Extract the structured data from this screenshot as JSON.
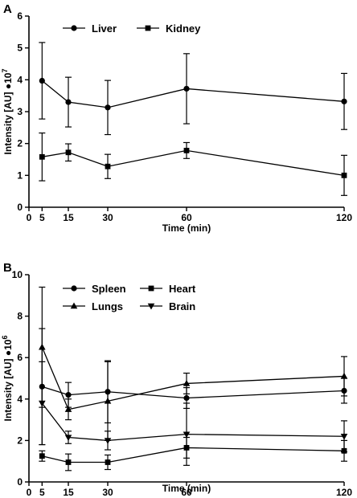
{
  "chart_data": [
    {
      "panel_label": "A",
      "type": "line",
      "x": [
        5,
        15,
        30,
        60,
        120
      ],
      "xticks": [
        0,
        5,
        15,
        30,
        60,
        120
      ],
      "xlabel": "Time (min)",
      "ylabel": "Intensity [AU] ●10",
      "ylabel_exp": "7",
      "ylim": [
        0,
        6
      ],
      "yticks": [
        0,
        1,
        2,
        3,
        4,
        5,
        6
      ],
      "legend_placement": "top-left",
      "series": [
        {
          "name": "Liver",
          "marker": "circle",
          "values": [
            3.97,
            3.3,
            3.13,
            3.72,
            3.32
          ],
          "errors": [
            1.2,
            0.78,
            0.85,
            1.1,
            0.88
          ]
        },
        {
          "name": "Kidney",
          "marker": "square",
          "values": [
            1.58,
            1.72,
            1.28,
            1.78,
            1.0
          ],
          "errors": [
            0.75,
            0.27,
            0.38,
            0.25,
            0.63
          ]
        }
      ]
    },
    {
      "panel_label": "B",
      "type": "line",
      "x": [
        5,
        15,
        30,
        60,
        120
      ],
      "xticks": [
        0,
        5,
        15,
        30,
        60,
        120
      ],
      "xlabel": "Time (min)",
      "ylabel": "Intensity [AU] ●10",
      "ylabel_exp": "6",
      "ylim": [
        0,
        10
      ],
      "yticks": [
        0,
        2,
        4,
        6,
        8,
        10
      ],
      "legend_placement": "top-left",
      "series": [
        {
          "name": "Spleen",
          "marker": "circle",
          "values": [
            4.6,
            4.2,
            4.35,
            4.05,
            4.4
          ],
          "errors": [
            2.8,
            0.6,
            1.5,
            0.5,
            0.6
          ]
        },
        {
          "name": "Heart",
          "marker": "square",
          "values": [
            1.25,
            0.95,
            0.95,
            1.65,
            1.5
          ],
          "errors": [
            0.25,
            0.4,
            0.35,
            0.5,
            0.5
          ]
        },
        {
          "name": "Lungs",
          "marker": "triangle-up",
          "values": [
            6.5,
            3.5,
            3.9,
            4.75,
            5.1
          ],
          "errors": [
            2.9,
            0.5,
            1.9,
            0.5,
            0.95
          ]
        },
        {
          "name": "Brain",
          "marker": "triangle-down",
          "values": [
            3.8,
            2.15,
            2.0,
            2.3,
            2.2
          ],
          "errors": [
            2.0,
            0.3,
            0.45,
            1.5,
            0.75
          ]
        }
      ]
    }
  ]
}
